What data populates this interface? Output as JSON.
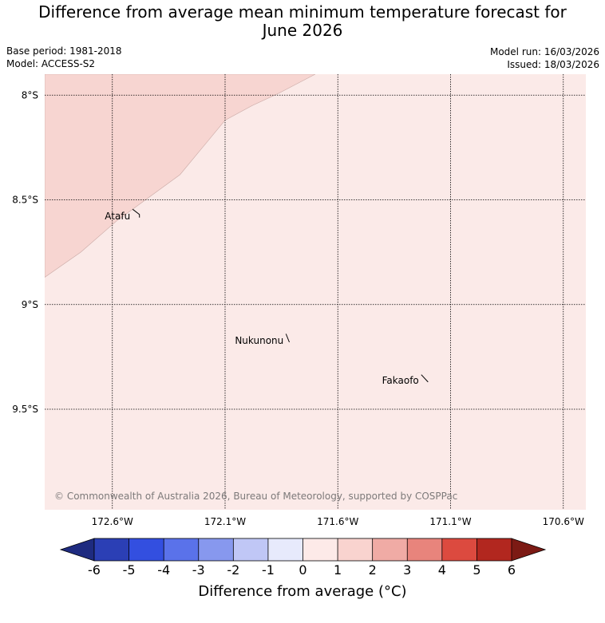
{
  "header": {
    "title_line1": "Difference from average mean minimum temperature forecast for",
    "title_line2": "June 2026",
    "base_period": "Base period: 1981-2018",
    "model": "Model: ACCESS-S2",
    "model_run": "Model run: 16/03/2026",
    "issued": "Issued: 18/03/2026"
  },
  "map": {
    "lon_range": [
      -172.9,
      -170.5
    ],
    "lat_range": [
      -9.98,
      -7.9
    ],
    "lat_ticks": [
      {
        "value": -8.0,
        "label": "8°S"
      },
      {
        "value": -8.5,
        "label": "8.5°S"
      },
      {
        "value": -9.0,
        "label": "9°S"
      },
      {
        "value": -9.5,
        "label": "9.5°S"
      }
    ],
    "lon_ticks": [
      {
        "value": -172.6,
        "label": "172.6°W"
      },
      {
        "value": -172.1,
        "label": "172.1°W"
      },
      {
        "value": -171.6,
        "label": "171.6°W"
      },
      {
        "value": -171.1,
        "label": "171.1°W"
      },
      {
        "value": -170.6,
        "label": "170.6°W"
      }
    ],
    "background_color": "#fbeae8",
    "warmer_color": "#f7d5d1",
    "warmer_region_boundary": [
      [
        -172.9,
        -8.87
      ],
      [
        -172.74,
        -8.75
      ],
      [
        -172.58,
        -8.6
      ],
      [
        -172.3,
        -8.38
      ],
      [
        -172.1,
        -8.12
      ],
      [
        -171.98,
        -8.05
      ],
      [
        -171.86,
        -7.99
      ],
      [
        -171.7,
        -7.9
      ]
    ],
    "places": [
      {
        "name": "Atafu",
        "lon": -172.5,
        "lat": -8.55,
        "coast": [
          [
            -172.51,
            -8.545
          ],
          [
            -172.48,
            -8.57
          ],
          [
            -172.48,
            -8.585
          ]
        ]
      },
      {
        "name": "Nukunonu",
        "lon": -171.8,
        "lat": -9.18,
        "coast": [
          [
            -171.83,
            -9.14
          ],
          [
            -171.815,
            -9.18
          ]
        ]
      },
      {
        "name": "Fakaofo",
        "lon": -171.22,
        "lat": -9.35,
        "coast": [
          [
            -171.23,
            -9.335
          ],
          [
            -171.2,
            -9.37
          ]
        ]
      }
    ],
    "copyright": "© Commonwealth of Australia 2026, Bureau of Meteorology, supported by COSPPac"
  },
  "colorbar": {
    "label": "Difference from average (°C)",
    "ticks": [
      "-6",
      "-5",
      "-4",
      "-3",
      "-2",
      "-1",
      "0",
      "1",
      "2",
      "3",
      "4",
      "5",
      "6"
    ],
    "colors": [
      "#2b3fb5",
      "#334fe0",
      "#5a72ea",
      "#8798ee",
      "#c0c7f6",
      "#e7eafc",
      "#fdeae8",
      "#f9d3cf",
      "#f0aba5",
      "#e8847c",
      "#dc4a3f",
      "#b2271f"
    ],
    "under_color": "#1e2b80",
    "over_color": "#7c1a14"
  }
}
